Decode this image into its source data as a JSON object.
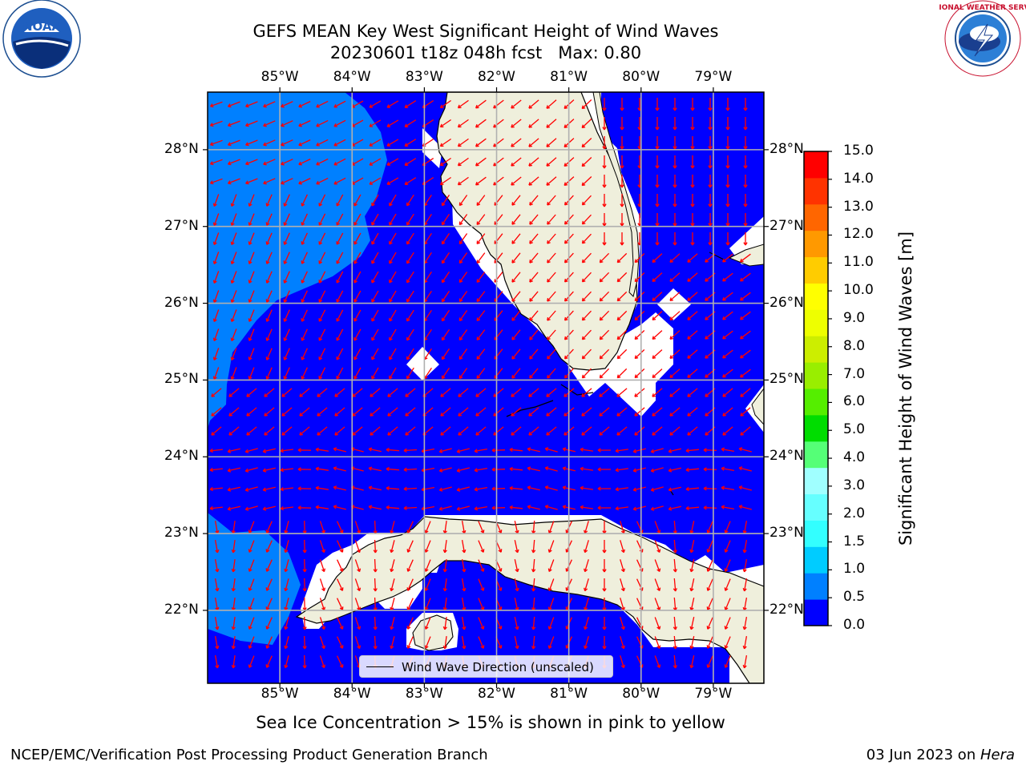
{
  "title": {
    "line1": "GEFS MEAN Key West Significant Height of Wind Waves",
    "line2": "20230601 t18z 048h fcst   Max: 0.80"
  },
  "logos": [
    {
      "icon": "noaa-logo-icon",
      "text": "NOAA",
      "ring": "NATIONAL OCEANIC AND ATMOSPHERIC ADMINISTRATION · U.S. DEPARTMENT OF COMMERCE"
    },
    {
      "icon": "nws-logo-icon",
      "ring": "NATIONAL WEATHER SERVICE"
    }
  ],
  "map": {
    "lon_range": [
      -86.0,
      -78.3
    ],
    "lat_range": [
      21.05,
      28.75
    ],
    "lon_ticks": [
      "85°W",
      "84°W",
      "83°W",
      "82°W",
      "81°W",
      "80°W",
      "79°W"
    ],
    "lat_ticks": [
      "28°N",
      "27°N",
      "26°N",
      "25°N",
      "24°N",
      "23°N",
      "22°N"
    ],
    "grid": true,
    "arrow_color": "#ff0000",
    "land_color": "#efefdc",
    "legend_text": "Wind Wave Direction (unscaled)",
    "legend_placement": "bottom-center"
  },
  "colorbar": {
    "label": "Significant Height of Wind Waves [m]",
    "ticks": [
      "0.0",
      "0.5",
      "1.0",
      "1.5",
      "2.0",
      "3.0",
      "4.0",
      "5.0",
      "6.0",
      "7.0",
      "8.0",
      "9.0",
      "10.0",
      "11.0",
      "12.0",
      "13.0",
      "14.0",
      "15.0"
    ],
    "colors": [
      "#0000ff",
      "#0080ff",
      "#00ccff",
      "#33ffff",
      "#66ffff",
      "#a0ffff",
      "#55ff77",
      "#00dd00",
      "#55ee00",
      "#99ee00",
      "#ccee00",
      "#eeff00",
      "#ffff00",
      "#ffcc00",
      "#ff9900",
      "#ff6600",
      "#ff3300",
      "#ff0000"
    ]
  },
  "sea_ice_note": "Sea Ice Concentration > 15% is shown in pink to yellow",
  "footer": {
    "left": "NCEP/EMC/Verification Post Processing Product Generation Branch",
    "date": "03 Jun 2023 on ",
    "host": "Hera"
  }
}
